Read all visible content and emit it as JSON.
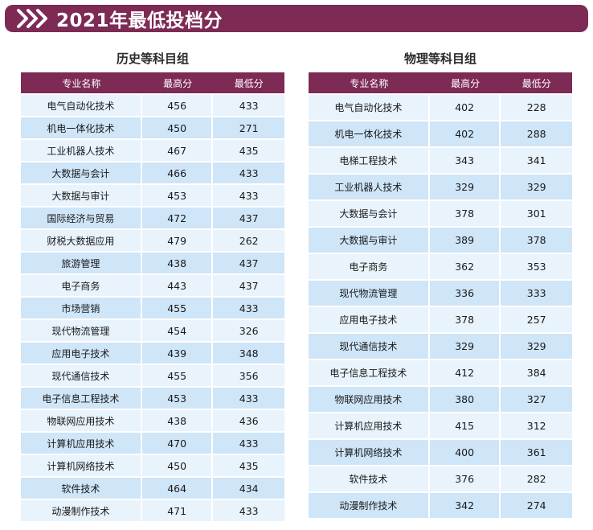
{
  "page": {
    "title": "2021年最低投档分"
  },
  "history": {
    "title": "历史等科目组",
    "columns": [
      "专业名称",
      "最高分",
      "最低分"
    ],
    "rows": [
      [
        "电气自动化技术",
        "456",
        "433"
      ],
      [
        "机电一体化技术",
        "450",
        "271"
      ],
      [
        "工业机器人技术",
        "467",
        "435"
      ],
      [
        "大数据与会计",
        "466",
        "433"
      ],
      [
        "大数据与审计",
        "453",
        "433"
      ],
      [
        "国际经济与贸易",
        "472",
        "437"
      ],
      [
        "财税大数据应用",
        "479",
        "262"
      ],
      [
        "旅游管理",
        "438",
        "437"
      ],
      [
        "电子商务",
        "443",
        "437"
      ],
      [
        "市场营销",
        "455",
        "433"
      ],
      [
        "现代物流管理",
        "454",
        "326"
      ],
      [
        "应用电子技术",
        "439",
        "348"
      ],
      [
        "现代通信技术",
        "455",
        "356"
      ],
      [
        "电子信息工程技术",
        "453",
        "433"
      ],
      [
        "物联网应用技术",
        "438",
        "436"
      ],
      [
        "计算机应用技术",
        "470",
        "433"
      ],
      [
        "计算机网络技术",
        "450",
        "435"
      ],
      [
        "软件技术",
        "464",
        "434"
      ],
      [
        "动漫制作技术",
        "471",
        "433"
      ]
    ]
  },
  "physics": {
    "title": "物理等科目组",
    "columns": [
      "专业名称",
      "最高分",
      "最低分"
    ],
    "rows": [
      [
        "电气自动化技术",
        "402",
        "228"
      ],
      [
        "机电一体化技术",
        "402",
        "288"
      ],
      [
        "电梯工程技术",
        "343",
        "341"
      ],
      [
        "工业机器人技术",
        "329",
        "329"
      ],
      [
        "大数据与会计",
        "378",
        "301"
      ],
      [
        "大数据与审计",
        "389",
        "378"
      ],
      [
        "电子商务",
        "362",
        "353"
      ],
      [
        "现代物流管理",
        "336",
        "333"
      ],
      [
        "应用电子技术",
        "378",
        "257"
      ],
      [
        "现代通信技术",
        "329",
        "329"
      ],
      [
        "电子信息工程技术",
        "412",
        "384"
      ],
      [
        "物联网应用技术",
        "380",
        "327"
      ],
      [
        "计算机应用技术",
        "415",
        "312"
      ],
      [
        "计算机网络技术",
        "400",
        "361"
      ],
      [
        "软件技术",
        "376",
        "282"
      ],
      [
        "动漫制作技术",
        "342",
        "274"
      ]
    ]
  },
  "colors": {
    "accent": "#7d2a55",
    "row_light": "#e8f3fc",
    "row_dark": "#cfe5f8"
  },
  "icons": {
    "header": "double-chevron-right-icon"
  }
}
